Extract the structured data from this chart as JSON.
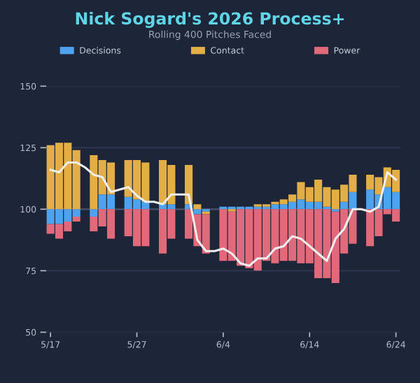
{
  "chart_data": {
    "type": "bar",
    "title": "Nick Sogard's 2026 Process+",
    "subtitle": "Rolling 400 Pitches Faced",
    "categories": [
      "5/17",
      null,
      null,
      null,
      null,
      null,
      null,
      null,
      null,
      null,
      "5/27",
      null,
      null,
      null,
      null,
      null,
      null,
      null,
      null,
      null,
      "6/4",
      null,
      null,
      null,
      null,
      null,
      null,
      null,
      null,
      null,
      "6/14",
      null,
      null,
      null,
      null,
      null,
      null,
      null,
      null,
      null,
      "6/24"
    ],
    "series": [
      {
        "name": "Decisions",
        "color": "#4da3f0",
        "values": [
          -6,
          -6,
          -5,
          -3,
          null,
          -3,
          6,
          6,
          null,
          5,
          4,
          3,
          null,
          2,
          2,
          null,
          2,
          -2,
          -1,
          null,
          1,
          1,
          1,
          1,
          1,
          1,
          2,
          2,
          3,
          4,
          3,
          3,
          1,
          -1,
          3,
          7,
          null,
          8,
          6,
          9,
          7
        ],
        "base": [
          100,
          100,
          100,
          100,
          null,
          100,
          100,
          100,
          null,
          100,
          100,
          100,
          null,
          100,
          100,
          null,
          100,
          100,
          100,
          null,
          100,
          100,
          100,
          100,
          100,
          100,
          100,
          100,
          100,
          100,
          100,
          100,
          100,
          100,
          100,
          100,
          null,
          100,
          100,
          100,
          100
        ]
      },
      {
        "name": "Contact",
        "color": "#e2ae45",
        "values": [
          26,
          27,
          27,
          24,
          null,
          22,
          14,
          13,
          null,
          15,
          16,
          16,
          null,
          18,
          16,
          null,
          16,
          2,
          -1,
          null,
          null,
          -1,
          null,
          null,
          1,
          1,
          1,
          2,
          3,
          7,
          6,
          9,
          8,
          8,
          7,
          7,
          null,
          6,
          7,
          8,
          9
        ],
        "base": [
          100,
          100,
          100,
          100,
          null,
          100,
          106,
          106,
          null,
          105,
          104,
          103,
          null,
          102,
          102,
          null,
          102,
          100,
          99,
          null,
          null,
          100,
          null,
          null,
          101,
          101,
          102,
          102,
          103,
          104,
          103,
          103,
          101,
          100,
          103,
          107,
          null,
          108,
          106,
          109,
          107
        ]
      },
      {
        "name": "Power",
        "color": "#e0697a",
        "values": [
          -4,
          -6,
          -4,
          -2,
          null,
          -6,
          -7,
          -12,
          null,
          -11,
          -15,
          -15,
          null,
          -18,
          -12,
          null,
          -12,
          -13,
          -16,
          null,
          -21,
          -20,
          -23,
          -24,
          -25,
          -21,
          -22,
          -21,
          -21,
          -22,
          -22,
          -28,
          -28,
          -29,
          -18,
          -14,
          null,
          -15,
          -11,
          -2,
          -5
        ],
        "base": [
          94,
          94,
          95,
          97,
          null,
          97,
          100,
          100,
          null,
          100,
          100,
          100,
          null,
          100,
          100,
          null,
          100,
          98,
          98,
          null,
          100,
          99,
          100,
          100,
          100,
          100,
          100,
          100,
          100,
          100,
          100,
          100,
          100,
          99,
          100,
          100,
          null,
          100,
          100,
          100,
          100
        ]
      },
      {
        "type": "line",
        "color": "#eeeeee",
        "values": [
          116,
          115,
          119,
          119,
          117,
          114,
          113,
          107,
          108,
          109,
          105.5,
          103,
          103,
          102,
          106,
          106,
          106,
          87.5,
          83,
          83,
          84,
          82,
          78,
          77,
          80,
          80,
          84,
          85,
          89,
          88,
          85,
          82,
          79,
          88,
          92,
          100,
          100,
          99,
          101,
          115,
          112
        ]
      }
    ],
    "ylim": [
      50,
      150
    ],
    "yticks": [
      50,
      75,
      100,
      125,
      150
    ],
    "ref_lines": [
      {
        "axis": "y",
        "value": 100,
        "color": "#4a5068"
      }
    ],
    "grid": "y",
    "legend": "top"
  }
}
